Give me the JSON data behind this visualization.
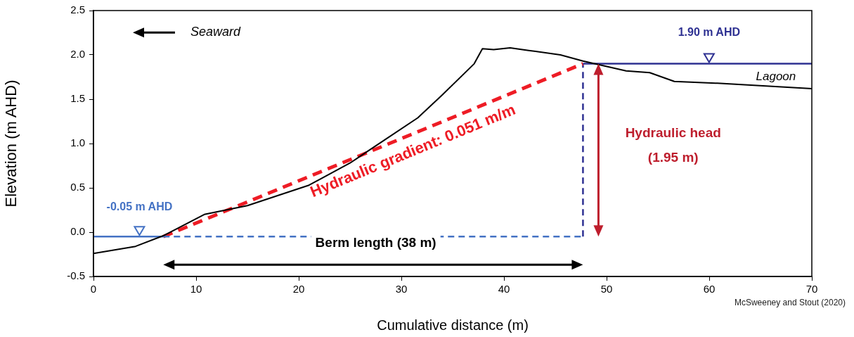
{
  "chart_data": {
    "type": "line",
    "xlabel": "Cumulative distance (m)",
    "ylabel": "Elevation (m AHD)",
    "xlim": [
      0,
      70
    ],
    "xticks": [
      0,
      10,
      20,
      30,
      40,
      50,
      60,
      70
    ],
    "ylim": [
      -0.5,
      2.5
    ],
    "yticks": [
      -0.5,
      {
        "value": 0,
        "label": "0.0"
      },
      0.5,
      {
        "value": 1,
        "label": "1.0"
      },
      1.5,
      {
        "value": 2,
        "label": "2.0"
      },
      2.5
    ],
    "grid": false,
    "legend": false,
    "marker": "none",
    "series": [
      {
        "color": "#000000",
        "line_style": "solid",
        "x": [
          0,
          4.1,
          6.8,
          10.8,
          15,
          21,
          25,
          28.5,
          31.6,
          34,
          37.1,
          37.9,
          39,
          40.6,
          42.4,
          45.5,
          47.7,
          51.9,
          54.2,
          56.6,
          60.8,
          70
        ],
        "values": [
          -0.24,
          -0.16,
          -0.04,
          0.2,
          0.3,
          0.53,
          0.78,
          1.05,
          1.29,
          1.55,
          1.9,
          2.07,
          2.06,
          2.08,
          2.05,
          2.0,
          1.93,
          1.82,
          1.8,
          1.7,
          1.68,
          1.62
        ]
      },
      {
        "color": "#4472c4",
        "line_style": "solid",
        "x": [
          0,
          6.8
        ],
        "values": [
          -0.05,
          -0.05
        ]
      },
      {
        "color": "#4472c4",
        "line_style": "dashed",
        "x": [
          6.8,
          47.7
        ],
        "values": [
          -0.05,
          -0.05
        ]
      },
      {
        "color": "#2e3192",
        "line_style": "solid",
        "x": [
          47.7,
          70
        ],
        "values": [
          1.9,
          1.9
        ]
      },
      {
        "color": "#ee1c25",
        "line_style": "dashed",
        "x": [
          6.8,
          47.7
        ],
        "values": [
          -0.05,
          1.9
        ]
      },
      {
        "color": "#2e3192",
        "line_style": "dashed",
        "x": [
          47.7,
          47.7
        ],
        "values": [
          -0.05,
          1.9
        ]
      }
    ],
    "annotations": [
      "Seaward",
      "-0.05 m AHD",
      "1.90 m AHD",
      "Lagoon",
      "Hydraulic gradient: 0.051 m/m",
      "Hydraulic head",
      "(1.95 m)",
      "Berm length (38 m)",
      "McSweeney and Stout (2020)"
    ]
  }
}
